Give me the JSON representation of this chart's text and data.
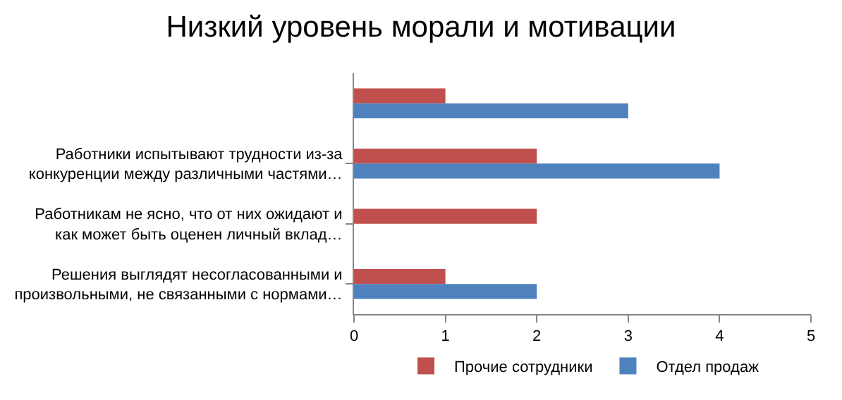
{
  "chart_data": {
    "type": "bar",
    "orientation": "horizontal",
    "title": "Низкий уровень морали и мотивации",
    "categories": [
      null,
      "Работники испытывают трудности из-за\nконкуренции между различными частями…",
      "Работникам не ясно, что от них ожидают и\nкак может быть оценен личный вклад…",
      "Решения выглядят несогласованными и\nпроизвольными, не связанными с нормами…"
    ],
    "series": [
      {
        "name": "Прочие сотрудники",
        "color": "#c0504d",
        "values": [
          1,
          2,
          2,
          1
        ]
      },
      {
        "name": "Отдел продаж",
        "color": "#4f81bd",
        "values": [
          3,
          4,
          0,
          2
        ]
      }
    ],
    "xlim": [
      0,
      5
    ],
    "xticks": [
      0,
      1,
      2,
      3,
      4,
      5
    ],
    "grid": false,
    "legend": "bottom"
  }
}
